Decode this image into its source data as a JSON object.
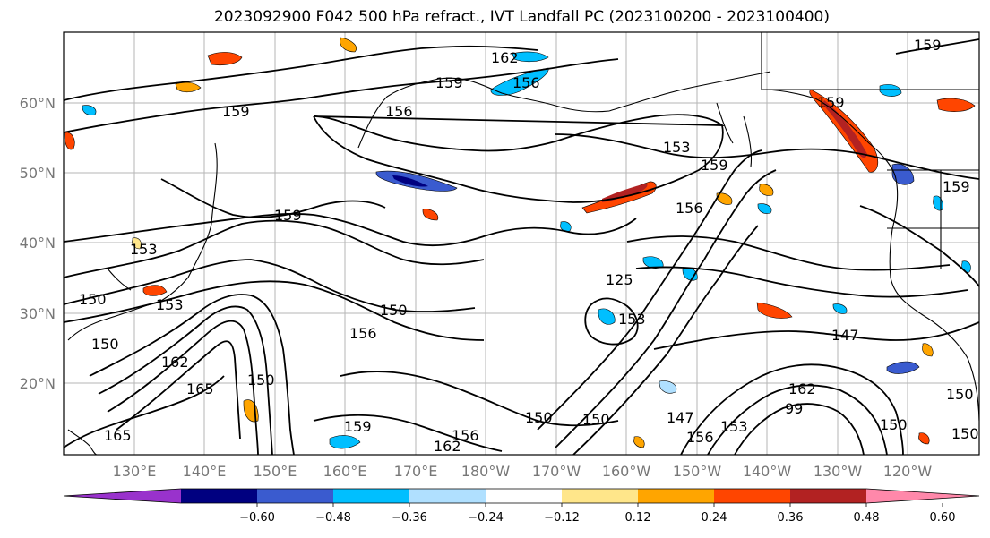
{
  "title": "2023092900 F042 500 hPa refract., IVT Landfall PC (2023100200 - 2023100400)",
  "lat_labels": [
    "60°N",
    "50°N",
    "40°N",
    "30°N",
    "20°N"
  ],
  "lon_labels": [
    "130°E",
    "140°E",
    "150°E",
    "160°E",
    "170°E",
    "180°W",
    "170°W",
    "160°W",
    "150°W",
    "140°W",
    "130°W",
    "120°W"
  ],
  "contour_labels": [
    "162",
    "159",
    "156",
    "159",
    "156",
    "159",
    "153",
    "159",
    "156",
    "159",
    "153",
    "150",
    "153",
    "159",
    "125",
    "150",
    "156",
    "153",
    "147",
    "150",
    "162",
    "165",
    "150",
    "165",
    "159",
    "150",
    "150",
    "147",
    "156",
    "153",
    "162",
    "150",
    "150",
    "162",
    "150",
    "156",
    "99",
    "159"
  ],
  "colorbar": {
    "ticks": [
      "−0.60",
      "−0.48",
      "−0.36",
      "−0.24",
      "−0.12",
      "0.12",
      "0.24",
      "0.36",
      "0.48",
      "0.60"
    ],
    "colors": [
      "#9932cc",
      "#000080",
      "#3a5bcf",
      "#00bfff",
      "#b0e0ff",
      "#ffffff",
      "#ffe68a",
      "#ffa500",
      "#ff4500",
      "#b22222",
      "#ff88aa"
    ]
  }
}
